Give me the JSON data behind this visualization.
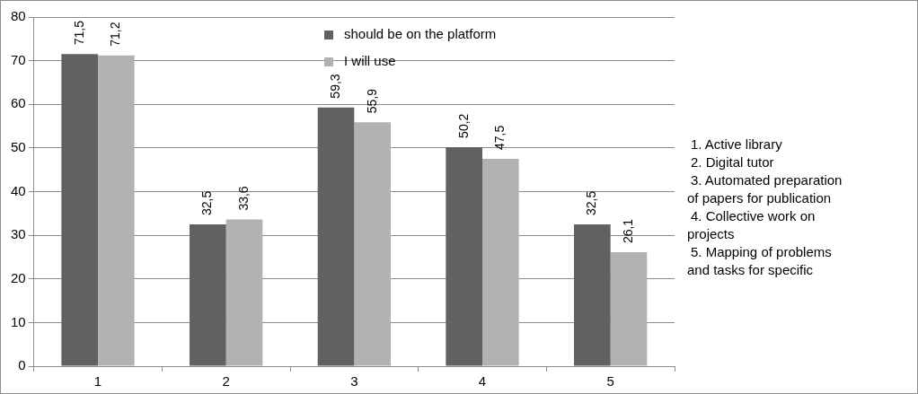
{
  "chart_data": {
    "type": "bar",
    "categories": [
      "1",
      "2",
      "3",
      "4",
      "5"
    ],
    "series": [
      {
        "name": "should be on the platform",
        "color": "#616161",
        "values": [
          71.5,
          32.5,
          59.3,
          50.2,
          32.5
        ],
        "value_labels": [
          "71,5",
          "32,5",
          "59,3",
          "50,2",
          "32,5"
        ]
      },
      {
        "name": "I will use",
        "color": "#b2b2b2",
        "values": [
          71.2,
          33.6,
          55.9,
          47.5,
          26.1
        ],
        "value_labels": [
          "71,2",
          "33,6",
          "55,9",
          "47,5",
          "26,1"
        ]
      }
    ],
    "ylim": [
      0,
      80
    ],
    "yticks": [
      0,
      10,
      20,
      30,
      40,
      50,
      60,
      70,
      80
    ],
    "grid": "y",
    "legend": "top right",
    "annotations": [
      "1. Active library",
      "2. Digital tutor",
      "3. Automated preparation of papers for publication",
      "4. Collective work on projects",
      "5. Mapping of problems and tasks for  specific"
    ]
  }
}
